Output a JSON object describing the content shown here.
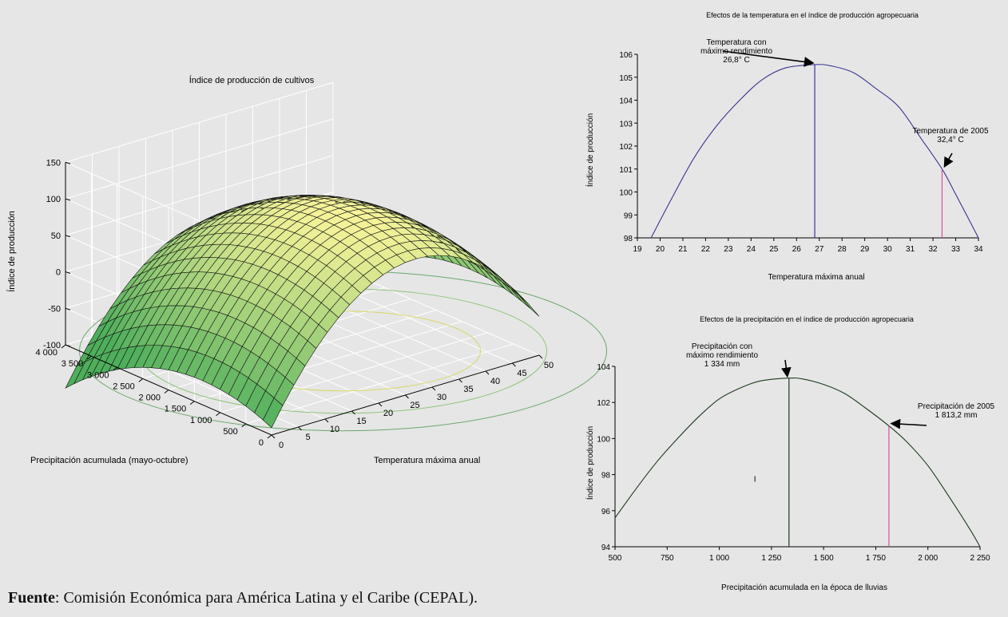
{
  "source": {
    "label": "Fuente",
    "text": ": Comisión Económica para América Latina y el Caribe (CEPAL)."
  },
  "colors": {
    "background": "#e6e6e6",
    "surface_light": "#f6f39a",
    "surface_dark": "#4fae5c",
    "temp_curve": "#3a3592",
    "prec_curve": "#1e3a1e",
    "marker_2005": "#d6529e"
  },
  "chart_data": [
    {
      "type": "surface",
      "title": "Índice de producción de cultivos",
      "zlabel": "Índice de producción",
      "xlabel": "Temperatura máxima anual",
      "ylabel": "Precipitación acumulada (mayo-octubre)",
      "zticks": [
        "150",
        "100",
        "50",
        "0",
        "-50",
        "-100"
      ],
      "xticks": [
        "0",
        "5",
        "10",
        "15",
        "20",
        "25",
        "30",
        "35",
        "40",
        "45",
        "50"
      ],
      "yticks": [
        "0",
        "500",
        "1 000",
        "1 500",
        "2 000",
        "2 500",
        "3 000",
        "3 500",
        "4 000"
      ],
      "xlim": [
        0,
        50
      ],
      "ylim": [
        0,
        4000
      ],
      "zlim": [
        -100,
        150
      ],
      "peak": {
        "temperature": 26.8,
        "precipitation": 1334,
        "index": 105.5
      },
      "corners": [
        {
          "temperature": 0,
          "precipitation": 0,
          "index": -85
        },
        {
          "temperature": 50,
          "precipitation": 0,
          "index": 20
        },
        {
          "temperature": 0,
          "precipitation": 4000,
          "index": -55
        },
        {
          "temperature": 50,
          "precipitation": 4000,
          "index": 15
        }
      ],
      "grid": true
    },
    {
      "type": "line",
      "title": "Efectos de la temperatura en el índice de producción agropecuaria",
      "xlabel": "Temperatura máxima anual",
      "ylabel": "Índice de producción",
      "xlim": [
        19,
        34
      ],
      "ylim": [
        98,
        106
      ],
      "xticks": [
        "19",
        "20",
        "21",
        "22",
        "23",
        "24",
        "25",
        "26",
        "27",
        "28",
        "29",
        "30",
        "31",
        "32",
        "33",
        "34"
      ],
      "yticks": [
        "106",
        "105",
        "104",
        "103",
        "102",
        "101",
        "100",
        "99",
        "98"
      ],
      "series": [
        {
          "x": [
            19.6,
            20.5,
            21.5,
            22.5,
            23.5,
            24.5,
            25.5,
            26.8,
            27.5,
            28.5,
            29.5,
            30.5,
            31.5,
            32.4,
            33.0,
            34.0
          ],
          "y": [
            98.0,
            99.7,
            101.5,
            102.9,
            104.0,
            104.9,
            105.4,
            105.55,
            105.5,
            105.2,
            104.5,
            103.7,
            102.3,
            101.0,
            99.9,
            98.0
          ]
        }
      ],
      "markers": [
        {
          "x": 26.8,
          "y": 105.55,
          "label": [
            "Temperatura con",
            "máximo rendimiento",
            "26,8° C"
          ]
        },
        {
          "x": 32.4,
          "y": 101.0,
          "label": [
            "Temperatura de 2005",
            "32,4° C"
          ]
        }
      ]
    },
    {
      "type": "line",
      "title": "Efectos de la precipitación en el índice de producción agropecuaria",
      "xlabel": "Precipitación acumulada en la época de lluvias",
      "ylabel": "Índice de producción",
      "xlim": [
        500,
        2250
      ],
      "ylim": [
        94,
        104
      ],
      "xticks": [
        "500",
        "750",
        "1 000",
        "1 250",
        "1 500",
        "1 750",
        "2 000",
        "2 250"
      ],
      "yticks": [
        "104",
        "102",
        "100",
        "98",
        "96",
        "94"
      ],
      "series": [
        {
          "x": [
            500,
            600,
            700,
            800,
            900,
            1000,
            1100,
            1200,
            1334,
            1400,
            1500,
            1600,
            1700,
            1813.2,
            1900,
            2000,
            2100,
            2200,
            2250
          ],
          "y": [
            95.6,
            97.2,
            98.7,
            100.0,
            101.2,
            102.2,
            102.8,
            103.2,
            103.35,
            103.3,
            103.0,
            102.5,
            101.7,
            100.7,
            99.8,
            98.5,
            96.8,
            95.0,
            94.0
          ]
        }
      ],
      "markers": [
        {
          "x": 1334,
          "y": 103.35,
          "label": [
            "Precipitación con",
            "máximo rendimiento",
            "1 334 mm"
          ]
        },
        {
          "x": 1813.2,
          "y": 100.7,
          "label": [
            "Precipitación de 2005",
            "1 813,2 mm"
          ]
        }
      ],
      "annotations": [
        "I"
      ]
    }
  ]
}
